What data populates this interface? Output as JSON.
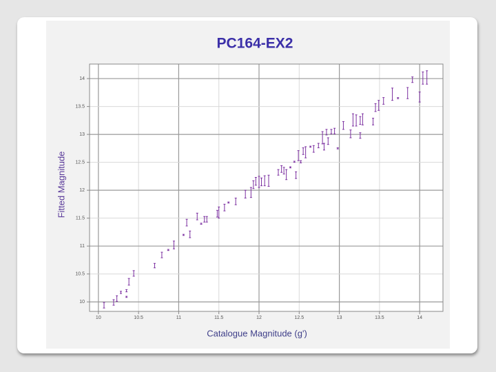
{
  "chart_data": {
    "type": "errorbar",
    "title": "PC164-EX2",
    "x_label": "Catalogue Magnitude (g')",
    "y_label": "Fitted Magnitude",
    "xlim": [
      9.89,
      14.29
    ],
    "ylim": [
      9.83,
      14.26
    ],
    "xticks": [
      10,
      10.5,
      11,
      11.5,
      12,
      12.5,
      13,
      13.5,
      14
    ],
    "yticks": [
      10,
      10.5,
      11,
      11.5,
      12,
      12.5,
      13,
      13.5,
      14
    ],
    "grid": true,
    "series": [
      {
        "color": "#7b2fa0",
        "x": [
          10.07,
          10.19,
          10.23,
          10.28,
          10.35,
          10.35,
          10.38,
          10.44,
          10.7,
          10.79,
          10.87,
          10.94,
          11.06,
          11.1,
          11.14,
          11.23,
          11.28,
          11.32,
          11.35,
          11.48,
          11.5,
          11.57,
          11.62,
          11.71,
          11.83,
          11.9,
          11.93,
          11.96,
          12.0,
          12.03,
          12.07,
          12.12,
          12.24,
          12.28,
          12.31,
          12.34,
          12.39,
          12.44,
          12.46,
          12.49,
          12.52,
          12.55,
          12.58,
          12.64,
          12.68,
          12.74,
          12.79,
          12.81,
          12.84,
          12.86,
          12.9,
          12.94,
          12.98,
          13.05,
          13.14,
          13.17,
          13.21,
          13.26,
          13.26,
          13.29,
          13.42,
          13.45,
          13.49,
          13.55,
          13.66,
          13.73,
          13.85,
          13.91,
          14.0,
          14.04,
          14.09
        ],
        "values": [
          9.94,
          9.99,
          10.06,
          10.17,
          10.2,
          10.09,
          10.36,
          10.51,
          10.65,
          10.84,
          10.93,
          11.02,
          11.2,
          11.42,
          11.21,
          11.53,
          11.4,
          11.48,
          11.48,
          11.58,
          11.6,
          11.69,
          11.78,
          11.8,
          11.93,
          11.96,
          12.1,
          12.16,
          12.15,
          12.15,
          12.17,
          12.17,
          12.32,
          12.38,
          12.35,
          12.28,
          12.41,
          12.51,
          12.27,
          12.62,
          12.51,
          12.7,
          12.68,
          12.78,
          12.74,
          12.8,
          12.94,
          12.78,
          13.04,
          12.88,
          13.05,
          13.06,
          12.75,
          13.16,
          13.01,
          13.26,
          13.25,
          13.25,
          12.98,
          13.27,
          13.23,
          13.48,
          13.52,
          13.6,
          13.72,
          13.65,
          13.74,
          13.98,
          13.67,
          14.01,
          14.02
        ],
        "errors": [
          0.05,
          0.05,
          0.05,
          0.02,
          0.02,
          0.01,
          0.06,
          0.05,
          0.04,
          0.05,
          0.01,
          0.07,
          0.01,
          0.06,
          0.06,
          0.06,
          0.01,
          0.05,
          0.05,
          0.06,
          0.1,
          0.06,
          0.01,
          0.06,
          0.07,
          0.09,
          0.07,
          0.07,
          0.1,
          0.07,
          0.09,
          0.1,
          0.05,
          0.06,
          0.06,
          0.09,
          0.01,
          0.01,
          0.06,
          0.09,
          0.02,
          0.06,
          0.1,
          0.01,
          0.06,
          0.04,
          0.11,
          0.06,
          0.05,
          0.06,
          0.04,
          0.05,
          0.01,
          0.07,
          0.07,
          0.11,
          0.1,
          0.07,
          0.05,
          0.1,
          0.06,
          0.07,
          0.09,
          0.06,
          0.11,
          0.01,
          0.1,
          0.05,
          0.09,
          0.11,
          0.12
        ]
      }
    ]
  }
}
